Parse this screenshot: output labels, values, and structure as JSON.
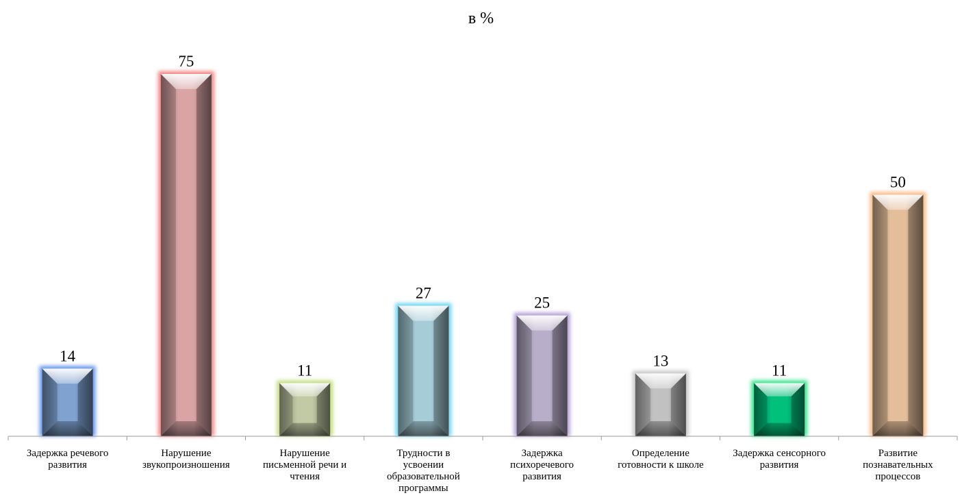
{
  "chart_data": {
    "type": "bar",
    "title": "в %",
    "categories": [
      "Задержка речевого развития",
      "Нарушение звукопроизношения",
      "Нарушение письменной речи и чтения",
      "Трудности в усвоении образовательной программы",
      "Задержка психоречевого развития",
      "Определение готовности к школе",
      "Задержка сенсорного развития",
      "Развитие познавательных процессов"
    ],
    "category_lines": [
      [
        "Задержка речевого",
        "развития"
      ],
      [
        "Нарушение",
        "звукопроизношения"
      ],
      [
        "Нарушение",
        "письменной речи и",
        "чтения"
      ],
      [
        "Трудности в",
        "усвоении",
        "образовательной",
        "программы"
      ],
      [
        "Задержка",
        "психоречевого",
        "развития"
      ],
      [
        "Определение",
        "готовности к школе"
      ],
      [
        "Задержка сенсорного",
        "развития"
      ],
      [
        "Развитие",
        "познавательных",
        "процессов"
      ]
    ],
    "values": [
      14,
      75,
      11,
      27,
      25,
      13,
      11,
      50
    ],
    "data_labels": [
      "14",
      "75",
      "11",
      "27",
      "25",
      "13",
      "11",
      "50"
    ],
    "colors": [
      "#8db4e8",
      "#f2b6b7",
      "#d6e0b6",
      "#b9e3f0",
      "#cdc1e0",
      "#d6d6d6",
      "#00d58a",
      "#fdd3ab"
    ],
    "glow_colors": [
      "#4f86e8",
      "#f07070",
      "#b9d86a",
      "#59cfee",
      "#a590cf",
      "#bfbfbf",
      "#16e07a",
      "#f7b071"
    ],
    "xlabel": "",
    "ylabel": "",
    "ylim": [
      0,
      75
    ],
    "grid": false,
    "legend": "none"
  }
}
